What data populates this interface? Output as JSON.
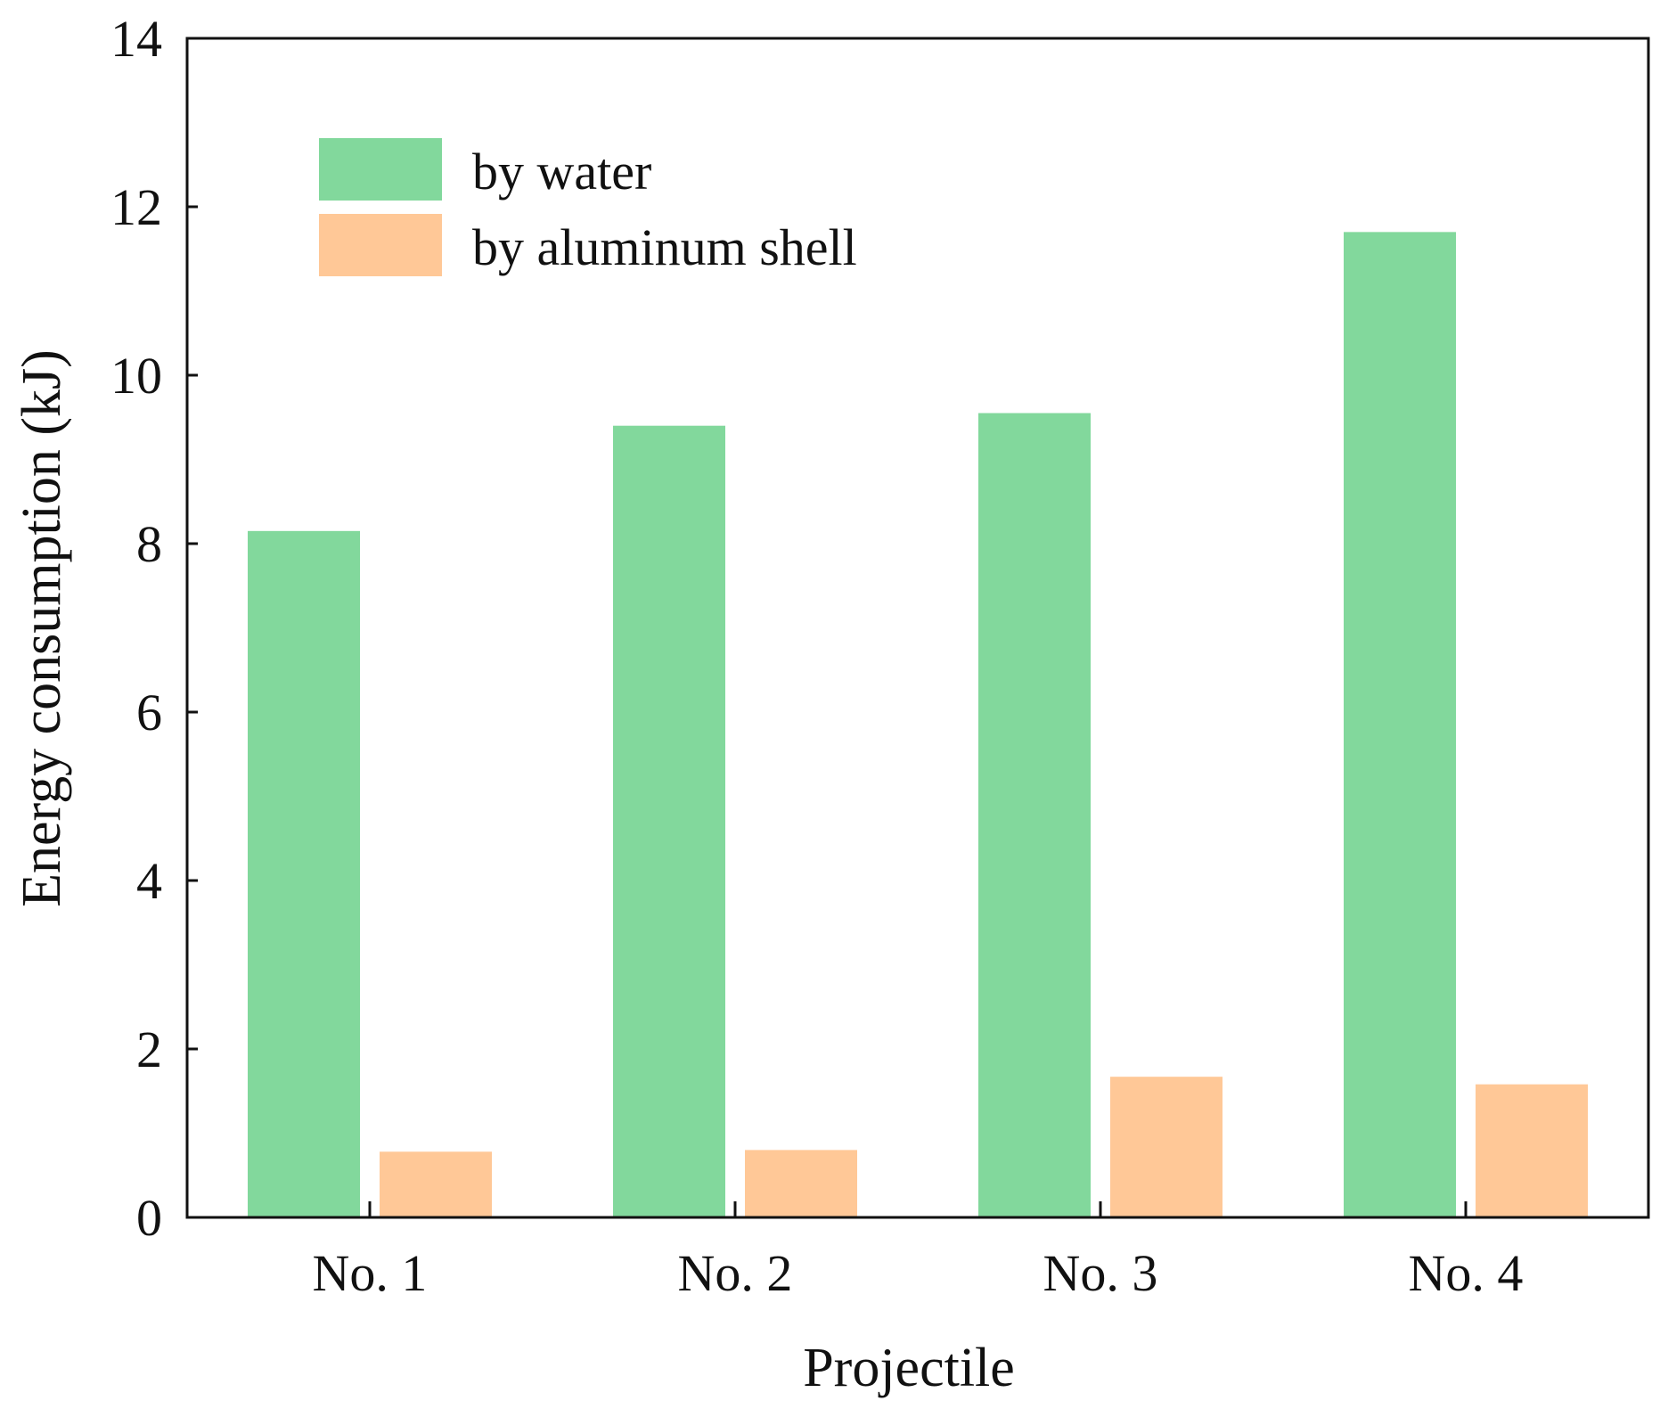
{
  "chart_data": {
    "type": "bar",
    "title": "",
    "xlabel": "Projectile",
    "ylabel": "Energy consumption (kJ)",
    "categories": [
      "No. 1",
      "No. 2",
      "No. 3",
      "No. 4"
    ],
    "ylim": [
      0,
      14
    ],
    "yticks": [
      "0",
      "2",
      "4",
      "6",
      "8",
      "10",
      "12",
      "14"
    ],
    "grid": false,
    "legend_position": "top-left",
    "series": [
      {
        "name": "by water",
        "color": "#82d89c",
        "values": [
          8.15,
          9.4,
          9.55,
          11.7
        ]
      },
      {
        "name": "by aluminum shell",
        "color": "#ffc897",
        "values": [
          0.78,
          0.8,
          1.67,
          1.58
        ]
      }
    ]
  }
}
